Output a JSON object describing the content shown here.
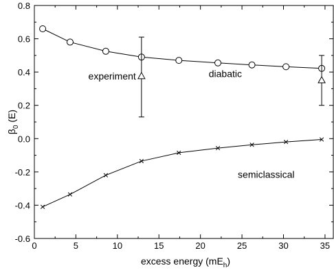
{
  "chart_data": {
    "type": "line",
    "xlabel": "excess energy (mE",
    "xlabel_sub": "h",
    "xlabel_end": ")",
    "ylabel": "β",
    "ylabel_sub": "0",
    "ylabel_end": " (E)",
    "xlim": [
      0,
      36
    ],
    "ylim": [
      -0.6,
      0.8
    ],
    "x_ticks": [
      0,
      5,
      10,
      15,
      20,
      25,
      30,
      35
    ],
    "y_ticks": [
      -0.6,
      -0.4,
      -0.2,
      0.0,
      0.2,
      0.4,
      0.6,
      0.8
    ],
    "y_tick_labels": [
      "-0.6",
      "-0.4",
      "-0.2",
      "0.0",
      "0.2",
      "0.4",
      "0.6",
      "0.8"
    ],
    "x_tick_labels": [
      "0",
      "5",
      "10",
      "15",
      "20",
      "25",
      "30",
      "35"
    ],
    "grid": false,
    "series": [
      {
        "name": "diabatic",
        "marker": "circle",
        "x": [
          1.0,
          4.3,
          8.6,
          12.9,
          17.4,
          22.1,
          26.2,
          30.3,
          34.6
        ],
        "y": [
          0.66,
          0.58,
          0.525,
          0.49,
          0.47,
          0.455,
          0.443,
          0.432,
          0.422
        ]
      },
      {
        "name": "semiclassical",
        "marker": "x",
        "x": [
          1.0,
          4.3,
          8.6,
          12.9,
          17.4,
          22.1,
          26.2,
          30.3,
          34.6
        ],
        "y": [
          -0.41,
          -0.335,
          -0.22,
          -0.135,
          -0.085,
          -0.057,
          -0.037,
          -0.02,
          -0.005
        ]
      },
      {
        "name": "experiment",
        "marker": "triangle",
        "x": [
          12.9,
          34.6
        ],
        "y": [
          0.375,
          0.35
        ],
        "err_low": [
          0.13,
          0.2
        ],
        "err_high": [
          0.61,
          0.5
        ]
      }
    ],
    "annotations": [
      {
        "text": "experiment",
        "x": 6.5,
        "y": 0.375
      },
      {
        "text": "diabatic",
        "x": 21.0,
        "y": 0.39
      },
      {
        "text": "semiclassical",
        "x": 24.5,
        "y": -0.215
      }
    ]
  }
}
